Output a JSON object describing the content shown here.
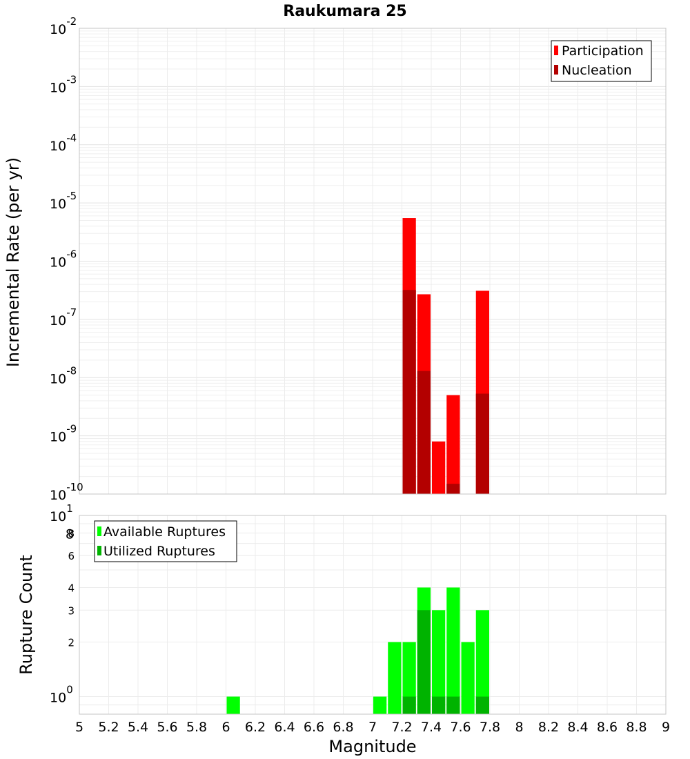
{
  "chart_data": [
    {
      "type": "bar",
      "title": "Raukumara 25",
      "ylabel": "Incremental Rate (per yr)",
      "yscale": "log",
      "ylim": [
        1e-10,
        0.01
      ],
      "xlim": [
        5,
        9
      ],
      "bar_width": 0.1,
      "grid": true,
      "legend_placement": "top-right",
      "series": [
        {
          "name": "Participation",
          "color": "#ff0000",
          "x": [
            7.25,
            7.35,
            7.45,
            7.55,
            7.75
          ],
          "values": [
            5.5e-06,
            2.7e-07,
            8e-10,
            5e-09,
            3.1e-07
          ]
        },
        {
          "name": "Nucleation",
          "color": "#b30000",
          "x": [
            7.25,
            7.35,
            7.55,
            7.75
          ],
          "values": [
            3.2e-07,
            1.3e-08,
            1.5e-10,
            5.3e-09
          ]
        }
      ],
      "y_ticks": [
        {
          "base": "10",
          "exp": "-2"
        },
        {
          "base": "10",
          "exp": "-3"
        },
        {
          "base": "10",
          "exp": "-4"
        },
        {
          "base": "10",
          "exp": "-5"
        },
        {
          "base": "10",
          "exp": "-6"
        },
        {
          "base": "10",
          "exp": "-7"
        },
        {
          "base": "10",
          "exp": "-8"
        },
        {
          "base": "10",
          "exp": "-9"
        },
        {
          "base": "10",
          "exp": "-10"
        }
      ]
    },
    {
      "type": "bar",
      "ylabel": "Rupture Count",
      "xlabel": "Magnitude",
      "yscale": "log",
      "ylim": [
        0.8,
        10
      ],
      "xlim": [
        5,
        9
      ],
      "bar_width": 0.1,
      "grid": true,
      "legend_placement": "top-left",
      "series": [
        {
          "name": "Available Ruptures",
          "color": "#00ff00",
          "x": [
            6.05,
            7.05,
            7.15,
            7.25,
            7.35,
            7.45,
            7.55,
            7.65,
            7.75
          ],
          "values": [
            1,
            1,
            2,
            2,
            4,
            3,
            4,
            2,
            3
          ]
        },
        {
          "name": "Utilized Ruptures",
          "color": "#00b300",
          "x": [
            7.25,
            7.35,
            7.45,
            7.55,
            7.75
          ],
          "values": [
            1,
            3,
            1,
            1,
            1
          ]
        }
      ],
      "y_ticks_major": [
        {
          "base": "10",
          "exp": "1"
        },
        {
          "base": "10",
          "exp": "0"
        }
      ],
      "y_ticks_minor": [
        "8",
        "6",
        "4",
        "3",
        "2"
      ],
      "y_tick_bottom": "8",
      "x_ticks": [
        "5",
        "5.2",
        "5.4",
        "5.6",
        "5.8",
        "6",
        "6.2",
        "6.4",
        "6.6",
        "6.8",
        "7",
        "7.2",
        "7.4",
        "7.6",
        "7.8",
        "8",
        "8.2",
        "8.4",
        "8.6",
        "8.8",
        "9"
      ]
    }
  ]
}
